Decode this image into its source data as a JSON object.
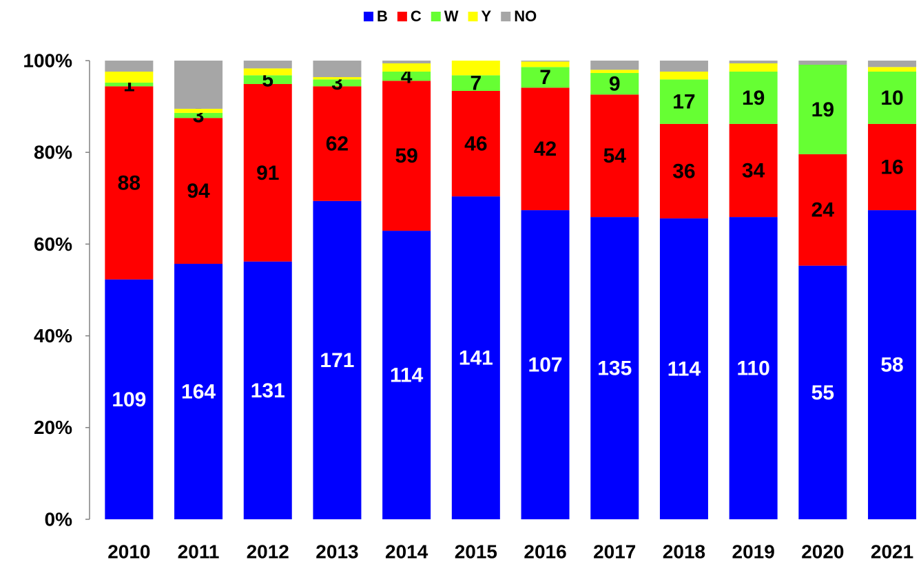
{
  "chart_data": {
    "type": "stacked_bar",
    "categories": [
      "2010",
      "2011",
      "2012",
      "2013",
      "2014",
      "2015",
      "2016",
      "2017",
      "2018",
      "2019",
      "2020",
      "2021"
    ],
    "series": [
      {
        "name": "B",
        "color": "#0000ff",
        "label_color": "#ffffff",
        "values": [
          52.3,
          55.7,
          56.2,
          69.4,
          62.9,
          70.4,
          67.4,
          65.9,
          65.6,
          65.9,
          55.3,
          67.4
        ],
        "labels": [
          109,
          164,
          131,
          171,
          114,
          141,
          107,
          135,
          114,
          110,
          55,
          58
        ]
      },
      {
        "name": "C",
        "color": "#ff0000",
        "label_color": "#000000",
        "values": [
          42.1,
          31.8,
          38.7,
          25.0,
          32.7,
          23.0,
          26.7,
          26.7,
          20.6,
          20.3,
          24.3,
          18.8
        ],
        "labels": [
          88,
          94,
          91,
          62,
          59,
          46,
          42,
          54,
          36,
          34,
          24,
          16
        ]
      },
      {
        "name": "W",
        "color": "#66ff33",
        "label_color": "#000000",
        "values": [
          0.8,
          1.1,
          1.9,
          1.5,
          2.0,
          3.4,
          4.5,
          4.7,
          9.7,
          11.4,
          19.5,
          11.4
        ],
        "labels": [
          1,
          3,
          5,
          3,
          4,
          7,
          7,
          9,
          17,
          19,
          19,
          10
        ]
      },
      {
        "name": "Y",
        "color": "#ffff00",
        "values": [
          2.4,
          0.9,
          1.5,
          0.5,
          1.8,
          3.2,
          1.2,
          0.7,
          1.7,
          1.8,
          0,
          1.0
        ]
      },
      {
        "name": "NO",
        "color": "#a6a6a6",
        "values": [
          2.4,
          10.5,
          1.7,
          3.6,
          0.6,
          0,
          0.2,
          2.0,
          2.4,
          0.6,
          0.9,
          1.4
        ]
      }
    ],
    "ylim": [
      0,
      100
    ],
    "yticks": [
      {
        "value": 0,
        "label": "0%"
      },
      {
        "value": 20,
        "label": "20%"
      },
      {
        "value": 40,
        "label": "40%"
      },
      {
        "value": 60,
        "label": "60%"
      },
      {
        "value": 80,
        "label": "80%"
      },
      {
        "value": 100,
        "label": "100%"
      }
    ],
    "legend": "top"
  }
}
